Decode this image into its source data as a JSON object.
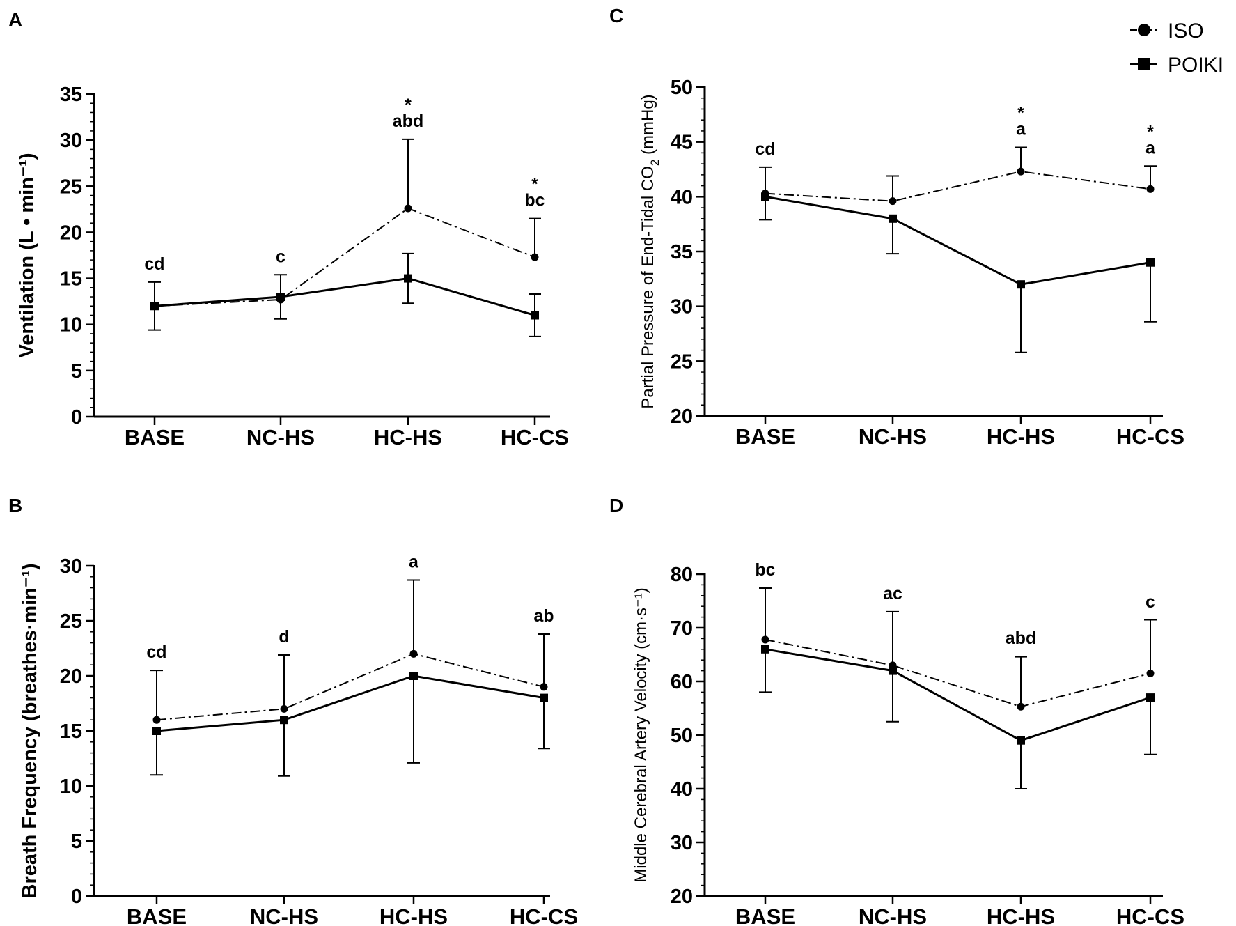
{
  "chart_data": [
    {
      "panel": "A",
      "type": "line",
      "categories": [
        "BASE",
        "NC-HS",
        "HC-HS",
        "HC-CS"
      ],
      "ylabel": "Ventilation (L • min⁻¹)",
      "ylim": [
        0,
        35
      ],
      "yticks": [
        0,
        5,
        10,
        15,
        20,
        25,
        30,
        35
      ],
      "series": [
        {
          "name": "ISO",
          "values": [
            12,
            12.7,
            22.6,
            17.3
          ],
          "err": [
            0,
            0,
            7.5,
            4.2
          ],
          "err_dir": "up"
        },
        {
          "name": "POIKI",
          "values": [
            12,
            13,
            15,
            11
          ],
          "err": [
            2.6,
            2.4,
            2.7,
            2.3
          ],
          "err_dir": "both"
        }
      ],
      "annotations": [
        {
          "cat": 0,
          "lines": [
            "cd"
          ],
          "y": 14.6
        },
        {
          "cat": 1,
          "lines": [
            "c"
          ],
          "y": 15.4
        },
        {
          "cat": 2,
          "lines": [
            "*",
            "abd"
          ],
          "y": 30.1
        },
        {
          "cat": 3,
          "lines": [
            "*",
            "bc"
          ],
          "y": 21.5
        }
      ]
    },
    {
      "panel": "B",
      "type": "line",
      "categories": [
        "BASE",
        "NC-HS",
        "HC-HS",
        "HC-CS"
      ],
      "ylabel": "Breath  Frequency  (breathes·min⁻¹)",
      "ylim": [
        0,
        30
      ],
      "yticks": [
        0,
        5,
        10,
        15,
        20,
        25,
        30
      ],
      "series": [
        {
          "name": "ISO",
          "values": [
            16,
            17,
            22,
            19
          ],
          "err": [
            4.5,
            4.9,
            6.7,
            4.8
          ],
          "err_dir": "up"
        },
        {
          "name": "POIKI",
          "values": [
            15,
            16,
            20,
            18
          ],
          "err": [
            4,
            5.1,
            7.9,
            4.6
          ],
          "err_dir": "down"
        }
      ],
      "annotations": [
        {
          "cat": 0,
          "lines": [
            "cd"
          ],
          "y": 20.5
        },
        {
          "cat": 1,
          "lines": [
            "d"
          ],
          "y": 21.9
        },
        {
          "cat": 2,
          "lines": [
            "a"
          ],
          "y": 28.7
        },
        {
          "cat": 3,
          "lines": [
            "ab"
          ],
          "y": 23.8
        }
      ]
    },
    {
      "panel": "C",
      "type": "line",
      "categories": [
        "BASE",
        "NC-HS",
        "HC-HS",
        "HC-CS"
      ],
      "ylabel": "Partial Pressure of End-Tidal CO",
      "ylabel_sub": "2",
      "ylabel_unit": " (mmHg)",
      "ylim": [
        20,
        50
      ],
      "yticks": [
        20,
        25,
        30,
        35,
        40,
        45,
        50
      ],
      "series": [
        {
          "name": "ISO",
          "values": [
            40.3,
            39.6,
            42.3,
            40.7
          ],
          "err": [
            2.4,
            2.3,
            2.2,
            2.1
          ],
          "err_dir": "up"
        },
        {
          "name": "POIKI",
          "values": [
            40,
            38,
            32,
            34
          ],
          "err": [
            2.1,
            3.2,
            6.2,
            5.4
          ],
          "err_dir": "down"
        }
      ],
      "annotations": [
        {
          "cat": 0,
          "lines": [
            "cd"
          ],
          "y": 42.7
        },
        {
          "cat": 2,
          "lines": [
            "*",
            "a"
          ],
          "y": 44.5
        },
        {
          "cat": 3,
          "lines": [
            "*",
            "a"
          ],
          "y": 42.8
        }
      ]
    },
    {
      "panel": "D",
      "type": "line",
      "categories": [
        "BASE",
        "NC-HS",
        "HC-HS",
        "HC-CS"
      ],
      "ylabel": "Middle Cerebral Artery Velocity (cm·s⁻¹)",
      "ylim": [
        20,
        80
      ],
      "yticks": [
        20,
        30,
        40,
        50,
        60,
        70,
        80
      ],
      "series": [
        {
          "name": "ISO",
          "values": [
            67.8,
            63,
            55.3,
            61.5
          ],
          "err": [
            9.6,
            10,
            9.3,
            10
          ],
          "err_dir": "up"
        },
        {
          "name": "POIKI",
          "values": [
            66,
            62,
            49,
            57
          ],
          "err": [
            8,
            9.5,
            9,
            10.6
          ],
          "err_dir": "down"
        }
      ],
      "annotations": [
        {
          "cat": 0,
          "lines": [
            "bc"
          ],
          "y": 77.4
        },
        {
          "cat": 1,
          "lines": [
            "ac"
          ],
          "y": 73
        },
        {
          "cat": 2,
          "lines": [
            "abd"
          ],
          "y": 64.7
        },
        {
          "cat": 3,
          "lines": [
            "c"
          ],
          "y": 71.4
        }
      ]
    }
  ],
  "legend": [
    {
      "name": "ISO",
      "label": "ISO",
      "marker": "circle",
      "line": "dash-dot"
    },
    {
      "name": "POIKI",
      "label": "POIKI",
      "marker": "square",
      "line": "solid"
    }
  ]
}
